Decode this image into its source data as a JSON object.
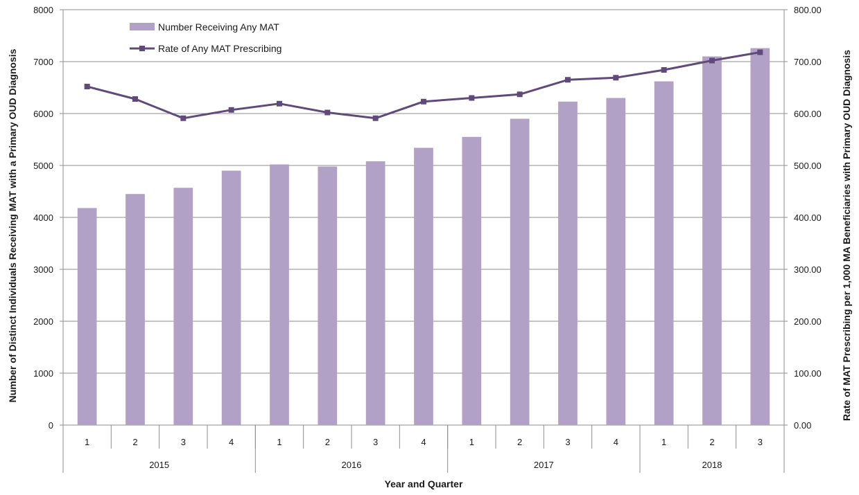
{
  "chart_data": {
    "type": "bar",
    "xlabel": "Year and Quarter",
    "ylabel_left": "Number of Distinct Individuals Receiving MAT with a Primary OUD Diagnosis",
    "ylabel_right": "Rate of MAT Prescribing per 1,000 MA Beneficiaries with Primary OUD Diagnosis",
    "quarters": [
      "1",
      "2",
      "3",
      "4",
      "1",
      "2",
      "3",
      "4",
      "1",
      "2",
      "3",
      "4",
      "1",
      "2",
      "3"
    ],
    "years": [
      {
        "label": "2015",
        "span": 4
      },
      {
        "label": "2016",
        "span": 4
      },
      {
        "label": "2017",
        "span": 4
      },
      {
        "label": "2018",
        "span": 3
      }
    ],
    "ylim_left": [
      0,
      8000
    ],
    "ylim_right": [
      0,
      800
    ],
    "yticks_left": [
      "0",
      "1000",
      "2000",
      "3000",
      "4000",
      "5000",
      "6000",
      "7000",
      "8000"
    ],
    "yticks_right": [
      "0.00",
      "100.00",
      "200.00",
      "300.00",
      "400.00",
      "500.00",
      "600.00",
      "700.00",
      "800.00"
    ],
    "grid": true,
    "legend_position": "top-left",
    "series": [
      {
        "name": "Number Receiving Any MAT",
        "type": "bar",
        "axis": "left",
        "color": "#b2a1c7",
        "values": [
          4180,
          4450,
          4570,
          4900,
          5020,
          4980,
          5080,
          5340,
          5550,
          5900,
          6230,
          6300,
          6620,
          7100,
          7260
        ]
      },
      {
        "name": "Rate of Any MAT Prescribing",
        "type": "line",
        "axis": "right",
        "color": "#604a7b",
        "marker": "square",
        "values": [
          652,
          628,
          591,
          607,
          619,
          602,
          591,
          623,
          630,
          637,
          665,
          669,
          684,
          702,
          718
        ]
      }
    ]
  }
}
